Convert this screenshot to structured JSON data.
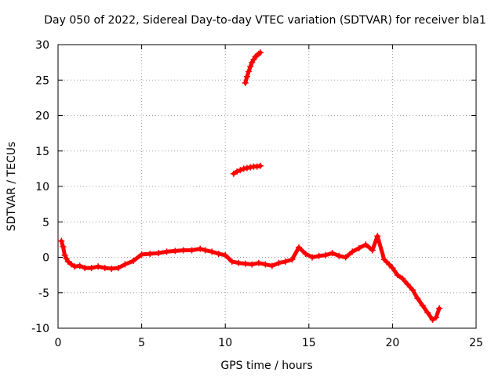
{
  "chart_data": {
    "type": "scatter",
    "title": "Day 050 of 2022, Sidereal Day-to-day VTEC variation (SDTVAR) for receiver bla1",
    "xlabel": "GPS time / hours",
    "ylabel": "SDTVAR / TECUs",
    "xlim": [
      0,
      25
    ],
    "ylim": [
      -10,
      30
    ],
    "xticks": [
      0,
      5,
      10,
      15,
      20,
      25
    ],
    "xtick_labels": [
      "0",
      "5",
      "10",
      "15",
      "20",
      "25"
    ],
    "yticks": [
      -10,
      -5,
      0,
      5,
      10,
      15,
      20,
      25,
      30
    ],
    "ytick_labels": [
      "-10",
      "-5",
      "0",
      "5",
      "10",
      "15",
      "20",
      "25",
      "30"
    ],
    "grid": true,
    "marker": "+",
    "series": [
      {
        "name": "main",
        "color": "#ff0000",
        "x": [
          0.2,
          0.3,
          0.4,
          0.5,
          0.6,
          0.8,
          1.0,
          1.3,
          1.6,
          2.0,
          2.4,
          2.8,
          3.2,
          3.6,
          4.0,
          4.5,
          5.0,
          5.5,
          6.0,
          6.5,
          7.0,
          7.5,
          8.0,
          8.5,
          8.8,
          9.2,
          9.6,
          10.0,
          10.4,
          10.8,
          11.2,
          11.6,
          12.0,
          12.4,
          12.8,
          13.2,
          13.6,
          14.0,
          14.4,
          14.8,
          15.2,
          15.6,
          16.0,
          16.4,
          16.8,
          17.2,
          17.6,
          18.0,
          18.4,
          18.8,
          19.1,
          19.5,
          19.8,
          20.0,
          20.3,
          20.6,
          20.9,
          21.2,
          21.5,
          21.8,
          22.1,
          22.4,
          22.6,
          22.8
        ],
        "y": [
          2.3,
          1.5,
          0.3,
          -0.2,
          -0.6,
          -1.0,
          -1.3,
          -1.2,
          -1.5,
          -1.5,
          -1.3,
          -1.5,
          -1.6,
          -1.5,
          -1.0,
          -0.5,
          0.4,
          0.5,
          0.6,
          0.8,
          0.9,
          1.0,
          1.0,
          1.2,
          1.0,
          0.8,
          0.5,
          0.3,
          -0.6,
          -0.8,
          -0.9,
          -1.0,
          -0.8,
          -1.0,
          -1.2,
          -0.8,
          -0.6,
          -0.3,
          1.4,
          0.5,
          0.0,
          0.2,
          0.3,
          0.6,
          0.2,
          0.0,
          0.8,
          1.3,
          1.8,
          1.0,
          3.0,
          -0.3,
          -1.0,
          -1.5,
          -2.5,
          -3.0,
          -3.8,
          -4.6,
          -5.8,
          -6.8,
          -7.8,
          -8.8,
          -8.5,
          -7.2
        ]
      },
      {
        "name": "segment-12",
        "color": "#ff0000",
        "x": [
          10.5,
          10.7,
          10.9,
          11.1,
          11.3,
          11.5,
          11.7,
          11.9,
          12.1
        ],
        "y": [
          11.8,
          12.1,
          12.3,
          12.5,
          12.6,
          12.7,
          12.8,
          12.8,
          12.9
        ]
      },
      {
        "name": "segment-27",
        "color": "#ff0000",
        "x": [
          11.2,
          11.3,
          11.4,
          11.5,
          11.6,
          11.7,
          11.8,
          11.9,
          12.0,
          12.1
        ],
        "y": [
          24.6,
          25.5,
          26.2,
          26.9,
          27.5,
          27.9,
          28.3,
          28.5,
          28.7,
          28.9
        ]
      }
    ]
  }
}
